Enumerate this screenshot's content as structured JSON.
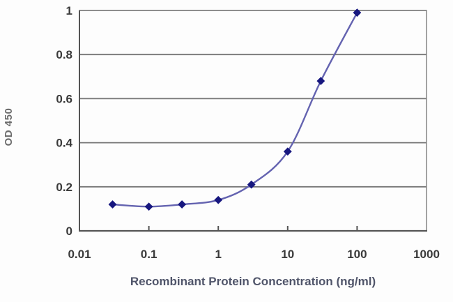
{
  "chart_data": {
    "type": "line",
    "title": "",
    "xlabel": "Recombinant Protein Concentration (ng/ml)",
    "ylabel": "OD 450",
    "x_scale": "log",
    "y_scale": "linear",
    "xlim": [
      0.01,
      1000
    ],
    "ylim": [
      0,
      1
    ],
    "x_ticks": [
      {
        "value": 0.01,
        "label": "0.01"
      },
      {
        "value": 0.1,
        "label": "0.1"
      },
      {
        "value": 1,
        "label": "1"
      },
      {
        "value": 10,
        "label": "10"
      },
      {
        "value": 100,
        "label": "100"
      },
      {
        "value": 1000,
        "label": "1000"
      }
    ],
    "y_ticks": [
      {
        "value": 0,
        "label": "0"
      },
      {
        "value": 0.2,
        "label": "0.2"
      },
      {
        "value": 0.4,
        "label": "0.4"
      },
      {
        "value": 0.6,
        "label": "0.6"
      },
      {
        "value": 0.8,
        "label": "0.8"
      },
      {
        "value": 1,
        "label": "1"
      }
    ],
    "grid": "horizontal",
    "legend": "none",
    "series": [
      {
        "name": "OD 450 standard curve",
        "marker": "diamond",
        "x": [
          0.03,
          0.1,
          0.3,
          1,
          3,
          10,
          30,
          100
        ],
        "y": [
          0.12,
          0.11,
          0.12,
          0.14,
          0.21,
          0.36,
          0.68,
          0.99
        ]
      }
    ],
    "colors": {
      "line": "#6463b0",
      "marker": "#17177f",
      "gridline": "#777777",
      "frame": "#8c8c8c",
      "axis": "#555555",
      "tick_label": "#3a3a3a",
      "x_title": "#50556a",
      "y_title": "#6b6b6b",
      "background": "#fdfdfd"
    }
  }
}
